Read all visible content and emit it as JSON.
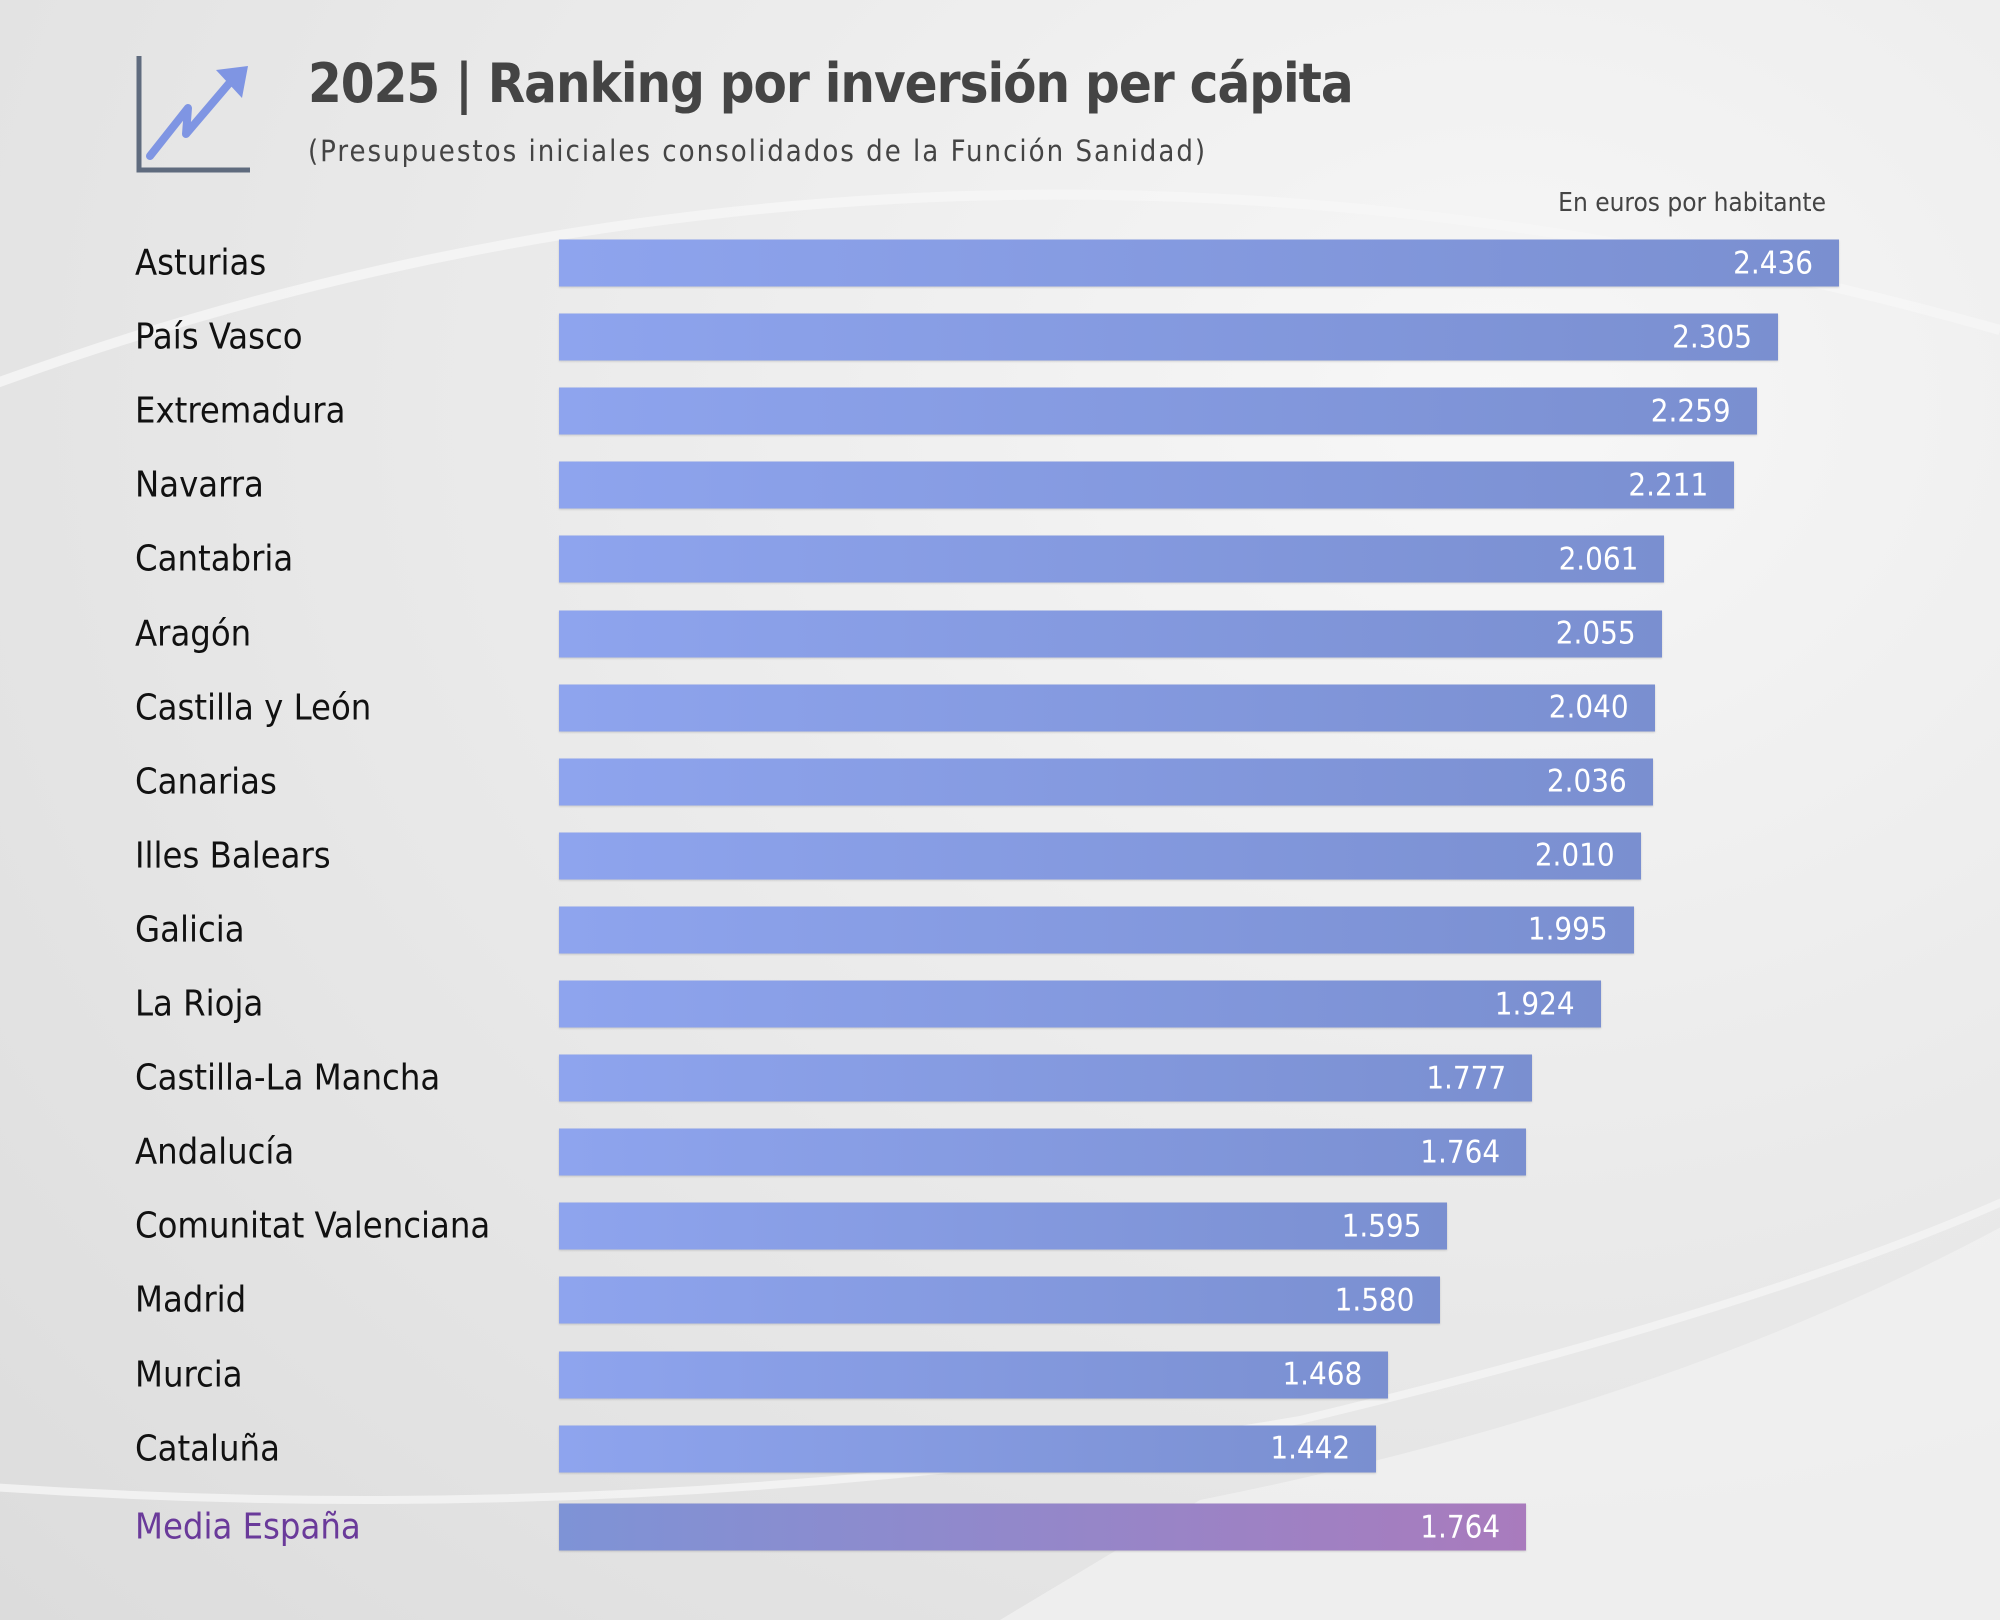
{
  "header": {
    "title": "2025 | Ranking por inversión per cápita",
    "subtitle": "(Presupuestos iniciales consolidados de la Función Sanidad)",
    "unit_note": "En euros por habitante",
    "icon": "trending-up-chart-icon"
  },
  "colors": {
    "bar_start": "#8ea4ee",
    "bar_end": "#7a8fd0",
    "average_bar_start": "#7e93d6",
    "average_bar_end": "#a97bbd",
    "average_label": "#6a3a9a"
  },
  "chart_data": {
    "type": "bar",
    "orientation": "horizontal",
    "title": "2025 | Ranking por inversión per cápita",
    "subtitle": "(Presupuestos iniciales consolidados de la Función Sanidad)",
    "unit": "En euros por habitante",
    "grid": false,
    "categories": [
      "Asturias",
      "País Vasco",
      "Extremadura",
      "Navarra",
      "Cantabria",
      "Aragón",
      "Castilla y León",
      "Canarias",
      "Illes Balears",
      "Galicia",
      "La Rioja",
      "Castilla-La Mancha",
      "Andalucía",
      "Comunitat Valenciana",
      "Madrid",
      "Murcia",
      "Cataluña"
    ],
    "values": [
      2436,
      2305,
      2259,
      2211,
      2061,
      2055,
      2040,
      2036,
      2010,
      1995,
      1924,
      1777,
      1764,
      1595,
      1580,
      1468,
      1442
    ],
    "value_labels": [
      "2.436",
      "2.305",
      "2.259",
      "2.211",
      "2.061",
      "2.055",
      "2.040",
      "2.036",
      "2.010",
      "1.995",
      "1.924",
      "1.777",
      "1.764",
      "1.595",
      "1.580",
      "1.468",
      "1.442"
    ],
    "average": {
      "label": "Media España",
      "value": 1764,
      "value_label": "1.764"
    }
  }
}
